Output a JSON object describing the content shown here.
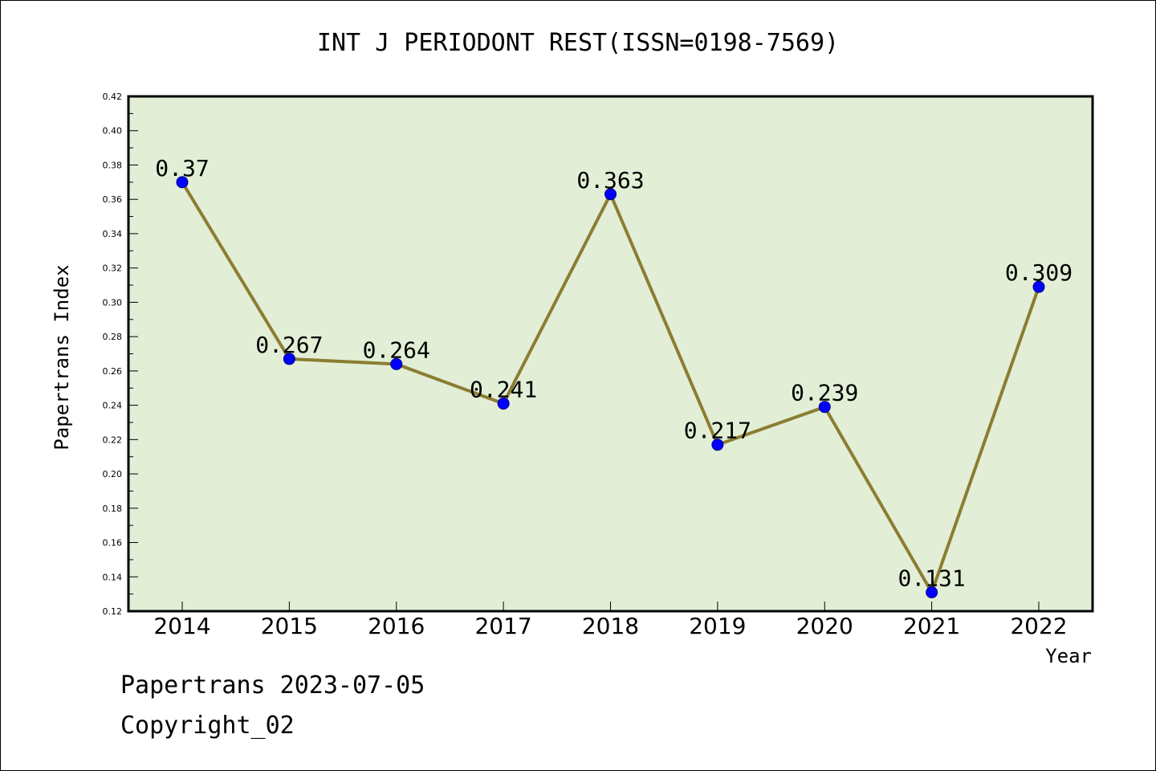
{
  "chart_data": {
    "type": "line",
    "title": "INT J PERIODONT REST(ISSN=0198-7569)",
    "xlabel": "Year",
    "ylabel": "Papertrans Index",
    "categories": [
      "2014",
      "2015",
      "2016",
      "2017",
      "2018",
      "2019",
      "2020",
      "2021",
      "2022"
    ],
    "series": [
      {
        "values": [
          0.37,
          0.267,
          0.264,
          0.241,
          0.363,
          0.217,
          0.239,
          0.131,
          0.309
        ]
      }
    ],
    "data_labels": [
      "0.37",
      "0.267",
      "0.264",
      "0.241",
      "0.363",
      "0.217",
      "0.239",
      "0.131",
      "0.309"
    ],
    "ylim": [
      0.12,
      0.42
    ],
    "yticks": [
      "0.12",
      "0.14",
      "0.16",
      "0.18",
      "0.20",
      "0.22",
      "0.24",
      "0.26",
      "0.28",
      "0.30",
      "0.32",
      "0.34",
      "0.36",
      "0.38",
      "0.40",
      "0.42"
    ],
    "grid": false,
    "legend": "none",
    "colors": {
      "plot_background": "#e2efd6",
      "line": "#8b7d32",
      "marker": "#0000ff"
    }
  },
  "footer": {
    "source": "Papertrans 2023-07-05",
    "copyright": "Copyright_02"
  }
}
